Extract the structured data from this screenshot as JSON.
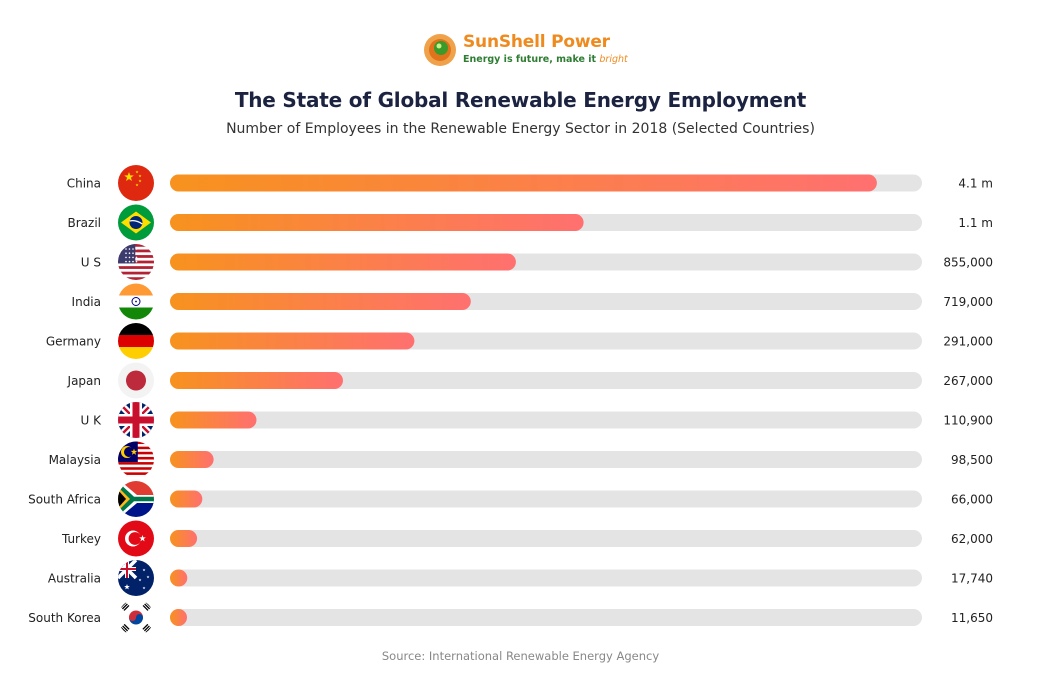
{
  "brand": {
    "name": "SunShell Power",
    "tagline_main": "Energy is future, make it",
    "tagline_highlight": "bright"
  },
  "colors": {
    "bar_start": "#f7921e",
    "bar_end": "#ff7070",
    "track": "#e4e4e4",
    "title": "#1c2340"
  },
  "source": "Source: International Renewable Energy Agency",
  "chart_data": {
    "type": "bar",
    "orientation": "horizontal",
    "title": "The State of Global Renewable Energy Employment",
    "subtitle": "Number of Employees in the Renewable Energy Sector in 2018 (Selected Countries)",
    "categories": [
      "China",
      "Brazil",
      "U S",
      "India",
      "Germany",
      "Japan",
      "U K",
      "Malaysia",
      "South Africa",
      "Turkey",
      "Australia",
      "South Korea"
    ],
    "values": [
      4100000,
      1100000,
      855000,
      719000,
      291000,
      267000,
      110900,
      98500,
      66000,
      62000,
      17740,
      11650
    ],
    "value_labels": [
      "4.1 m",
      "1.1 m",
      "855,000",
      "719,000",
      "291,000",
      "267,000",
      "110,900",
      "98,500",
      "66,000",
      "62,000",
      "17,740",
      "11,650"
    ],
    "bar_fill_fraction": [
      0.94,
      0.55,
      0.46,
      0.4,
      0.325,
      0.23,
      0.115,
      0.058,
      0.043,
      0.036,
      0.023,
      0.019
    ],
    "flags": [
      "china-flag",
      "brazil-flag",
      "us-flag",
      "india-flag",
      "germany-flag",
      "japan-flag",
      "uk-flag",
      "malaysia-flag",
      "south-africa-flag",
      "turkey-flag",
      "australia-flag",
      "south-korea-flag"
    ]
  }
}
